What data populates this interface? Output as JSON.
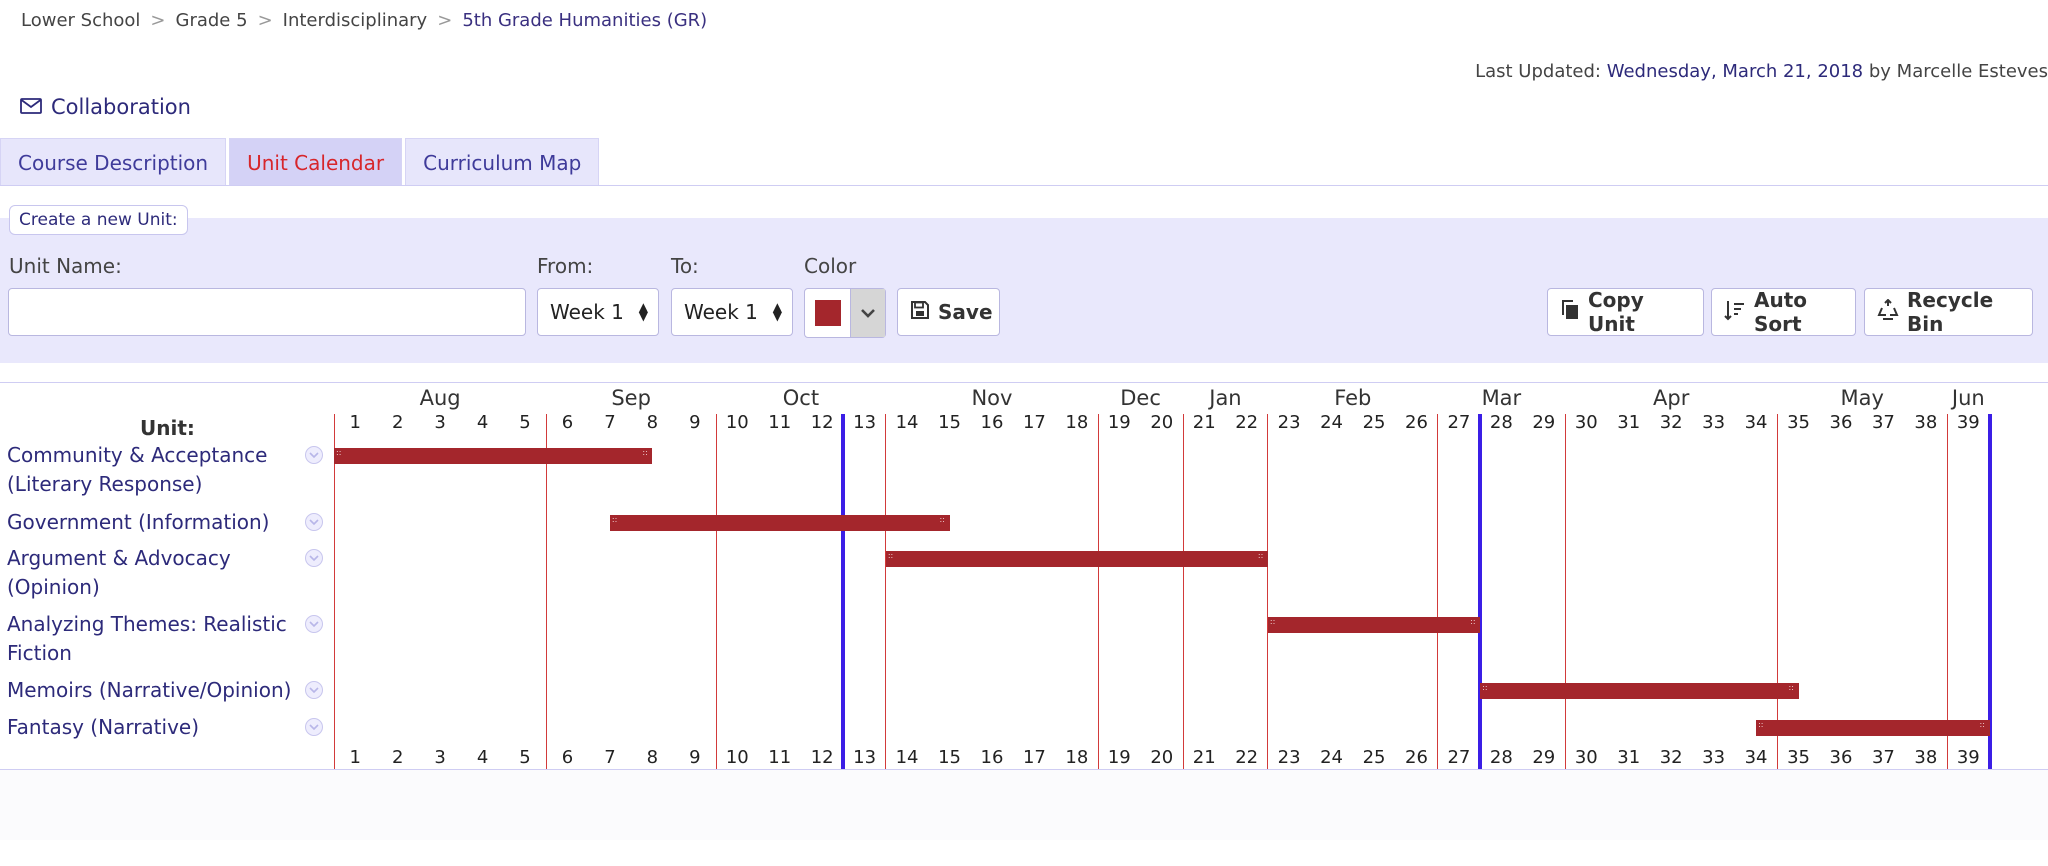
{
  "breadcrumb": {
    "items": [
      "Lower School",
      "Grade 5",
      "Interdisciplinary"
    ],
    "separator": ">",
    "current": "5th Grade Humanities (GR)"
  },
  "last_updated": {
    "label": "Last Updated:",
    "date": "Wednesday, March 21, 2018",
    "by": "by Marcelle Esteves"
  },
  "collaboration": {
    "icon": "envelope-icon",
    "label": "Collaboration"
  },
  "tabs": [
    {
      "label": "Course Description",
      "active": false
    },
    {
      "label": "Unit Calendar",
      "active": true
    },
    {
      "label": "Curriculum Map",
      "active": false
    }
  ],
  "form": {
    "legend": "Create a new Unit:",
    "unit_name_label": "Unit Name:",
    "unit_name_value": "",
    "from_label": "From:",
    "from_value": "Week 1",
    "to_label": "To:",
    "to_value": "Week 1",
    "color_label": "Color",
    "color_value": "#a4262c",
    "save_label": "Save"
  },
  "actions": {
    "copy_unit": "Copy Unit",
    "auto_sort": "Auto Sort",
    "recycle_bin": "Recycle Bin"
  },
  "calendar": {
    "unit_header": "Unit:",
    "months": [
      {
        "label": "Aug",
        "start_week": 1,
        "end_week": 5
      },
      {
        "label": "Sep",
        "start_week": 6,
        "end_week": 9
      },
      {
        "label": "Oct",
        "start_week": 10,
        "end_week": 13
      },
      {
        "label": "Nov",
        "start_week": 14,
        "end_week": 18
      },
      {
        "label": "Dec",
        "start_week": 19,
        "end_week": 20
      },
      {
        "label": "Jan",
        "start_week": 21,
        "end_week": 22
      },
      {
        "label": "Feb",
        "start_week": 23,
        "end_week": 26
      },
      {
        "label": "Mar",
        "start_week": 27,
        "end_week": 29
      },
      {
        "label": "Apr",
        "start_week": 30,
        "end_week": 34
      },
      {
        "label": "May",
        "start_week": 35,
        "end_week": 38
      },
      {
        "label": "Jun",
        "start_week": 39,
        "end_week": 39
      }
    ],
    "weeks": [
      1,
      2,
      3,
      4,
      5,
      6,
      7,
      8,
      9,
      10,
      11,
      12,
      13,
      14,
      15,
      16,
      17,
      18,
      19,
      20,
      21,
      22,
      23,
      24,
      25,
      26,
      27,
      28,
      29,
      30,
      31,
      32,
      33,
      34,
      35,
      36,
      37,
      38,
      39
    ],
    "red_boundaries_after_week": [
      0,
      5,
      9,
      13,
      18,
      20,
      22,
      26,
      29,
      34,
      38
    ],
    "blue_boundaries_after_week": [
      12,
      27,
      39
    ],
    "units": [
      {
        "name": "Community & Acceptance (Literary Response)",
        "start_week": 1,
        "end_week": 7.5,
        "color": "#a4262c"
      },
      {
        "name": "Government (Information)",
        "start_week": 7.5,
        "end_week": 14.5,
        "color": "#a4262c"
      },
      {
        "name": "Argument & Advocacy (Opinion)",
        "start_week": 14,
        "end_week": 22,
        "color": "#a4262c"
      },
      {
        "name": "Analyzing Themes: Realistic Fiction",
        "start_week": 23,
        "end_week": 27,
        "color": "#a4262c"
      },
      {
        "name": "Memoirs (Narrative/Opinion)",
        "start_week": 28,
        "end_week": 34.5,
        "color": "#a4262c"
      },
      {
        "name": "Fantasy (Narrative)",
        "start_week": 34.5,
        "end_week": 39,
        "color": "#a4262c"
      }
    ]
  }
}
